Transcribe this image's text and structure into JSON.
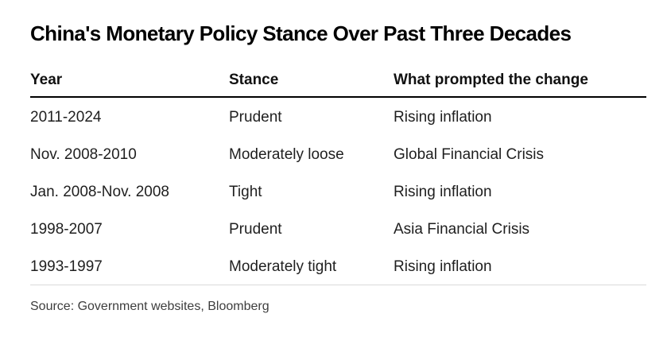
{
  "chart_data": {
    "type": "table",
    "title": "China's Monetary Policy Stance Over Past Three Decades",
    "columns": [
      "Year",
      "Stance",
      "What prompted the change"
    ],
    "rows": [
      [
        "2011-2024",
        "Prudent",
        "Rising inflation"
      ],
      [
        "Nov. 2008-2010",
        "Moderately loose",
        "Global Financial Crisis"
      ],
      [
        "Jan. 2008-Nov. 2008",
        "Tight",
        "Rising inflation"
      ],
      [
        "1998-2007",
        "Prudent",
        "Asia Financial Crisis"
      ],
      [
        "1993-1997",
        "Moderately tight",
        "Rising inflation"
      ]
    ],
    "source": "Source: Government websites, Bloomberg",
    "legend_position": "none",
    "grid": "off"
  },
  "colors": {
    "background": "#ffffff",
    "title_text": "#000000",
    "body_text": "#1f1f1f",
    "header_rule": "#000000",
    "footer_rule": "#d9d9d9",
    "source_text": "#3d3d3d"
  }
}
